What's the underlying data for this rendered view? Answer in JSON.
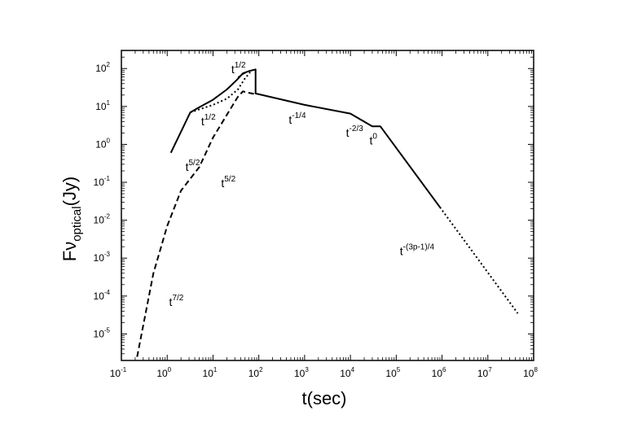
{
  "chart_data": {
    "type": "line",
    "xscale": "log",
    "yscale": "log",
    "xlim": [
      0.1,
      100000000
    ],
    "ylim": [
      2e-06,
      300
    ],
    "xlabel": "t(sec)",
    "ylabel": {
      "base": "Fν",
      "sub": "optical",
      "unit": "(Jy)"
    },
    "xticks": [
      {
        "base": "10",
        "exp": "-1",
        "value": 0.1
      },
      {
        "base": "10",
        "exp": "0",
        "value": 1
      },
      {
        "base": "10",
        "exp": "1",
        "value": 10
      },
      {
        "base": "10",
        "exp": "2",
        "value": 100
      },
      {
        "base": "10",
        "exp": "3",
        "value": 1000
      },
      {
        "base": "10",
        "exp": "4",
        "value": 10000
      },
      {
        "base": "10",
        "exp": "5",
        "value": 100000
      },
      {
        "base": "10",
        "exp": "6",
        "value": 1000000
      },
      {
        "base": "10",
        "exp": "7",
        "value": 10000000
      },
      {
        "base": "10",
        "exp": "8",
        "value": 100000000
      }
    ],
    "yticks": [
      {
        "base": "10",
        "exp": "-5",
        "value": 1e-05
      },
      {
        "base": "10",
        "exp": "-4",
        "value": 0.0001
      },
      {
        "base": "10",
        "exp": "-3",
        "value": 0.001
      },
      {
        "base": "10",
        "exp": "-2",
        "value": 0.01
      },
      {
        "base": "10",
        "exp": "-1",
        "value": 0.1
      },
      {
        "base": "10",
        "exp": "0",
        "value": 1
      },
      {
        "base": "10",
        "exp": "1",
        "value": 10
      },
      {
        "base": "10",
        "exp": "2",
        "value": 100
      }
    ],
    "grid": false,
    "series": [
      {
        "style": "solid",
        "points": [
          [
            1.2,
            0.6
          ],
          [
            3.2,
            7
          ],
          [
            5,
            9.5
          ],
          [
            10,
            15
          ],
          [
            20,
            28
          ],
          [
            33,
            50
          ],
          [
            45,
            75
          ],
          [
            60,
            85
          ],
          [
            85,
            95
          ],
          [
            85,
            22
          ],
          [
            1000,
            11
          ],
          [
            10000,
            6.5
          ],
          [
            30000,
            3
          ],
          [
            45000,
            3
          ],
          [
            900000,
            0.022
          ]
        ]
      },
      {
        "style": "dotted",
        "points": [
          [
            3.2,
            7
          ],
          [
            10,
            11
          ],
          [
            20,
            16
          ],
          [
            35,
            28
          ],
          [
            50,
            55
          ],
          [
            65,
            80
          ]
        ]
      },
      {
        "style": "dashed",
        "points": [
          [
            0.22,
            2.5e-06
          ],
          [
            0.5,
            0.0004
          ],
          [
            1,
            0.007
          ],
          [
            2,
            0.06
          ],
          [
            5,
            0.25
          ],
          [
            10,
            1.5
          ],
          [
            20,
            6
          ],
          [
            35,
            18
          ],
          [
            45,
            25
          ],
          [
            60,
            23
          ],
          [
            85,
            21
          ]
        ]
      },
      {
        "style": "dotted",
        "points": [
          [
            900000,
            0.022
          ],
          [
            45000000,
            3.5e-05
          ]
        ]
      }
    ],
    "annotations": [
      {
        "base": "t",
        "exp": "1/2",
        "x": 25,
        "y": 75
      },
      {
        "base": "t",
        "exp": "1/2",
        "x": 5.5,
        "y": 3.2
      },
      {
        "base": "t",
        "exp": "5/2",
        "x": 2.5,
        "y": 0.2
      },
      {
        "base": "t",
        "exp": "5/2",
        "x": 15,
        "y": 0.075
      },
      {
        "base": "t",
        "exp": "7/2",
        "x": 1.1,
        "y": 5.5e-05
      },
      {
        "base": "t",
        "exp": "-1/4",
        "x": 450,
        "y": 3.5
      },
      {
        "base": "t",
        "exp": "-2/3",
        "x": 8000,
        "y": 1.6
      },
      {
        "base": "t",
        "exp": "0",
        "x": 26000,
        "y": 1.0
      },
      {
        "base": "t",
        "exp": "-(3p-1)/4",
        "x": 120000,
        "y": 0.0012
      }
    ],
    "leader_line": {
      "from": [
        35,
        60
      ],
      "to": [
        55,
        80
      ]
    }
  }
}
